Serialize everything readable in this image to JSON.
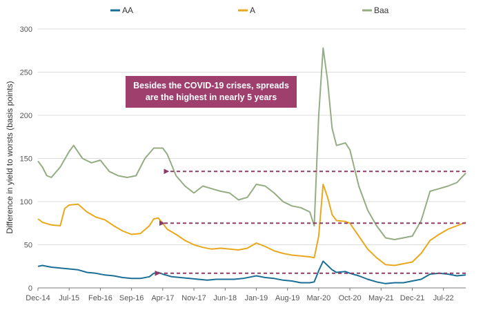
{
  "chart_data": {
    "type": "line",
    "title": "",
    "xlabel": "",
    "ylabel": "Difference in yield to worsts (basis points)",
    "ylim": [
      0,
      300
    ],
    "yticks": [
      0,
      50,
      100,
      150,
      200,
      250,
      300
    ],
    "xlim": [
      "2014-12",
      "2022-12"
    ],
    "xticks": [
      {
        "date": "2014-12",
        "label": "Dec-14"
      },
      {
        "date": "2015-07",
        "label": "Jul-15"
      },
      {
        "date": "2016-02",
        "label": "Feb-16"
      },
      {
        "date": "2016-09",
        "label": "Sep-16"
      },
      {
        "date": "2017-04",
        "label": "Apr-17"
      },
      {
        "date": "2017-11",
        "label": "Nov-17"
      },
      {
        "date": "2018-06",
        "label": "Jun-18"
      },
      {
        "date": "2019-01",
        "label": "Jan-19"
      },
      {
        "date": "2019-08",
        "label": "Aug-19"
      },
      {
        "date": "2020-03",
        "label": "Mar-20"
      },
      {
        "date": "2020-10",
        "label": "Oct-20"
      },
      {
        "date": "2021-05",
        "label": "May-21"
      },
      {
        "date": "2021-12",
        "label": "Dec-21"
      },
      {
        "date": "2022-07",
        "label": "Jul-22"
      }
    ],
    "grid": true,
    "legend_position": "top",
    "series": [
      {
        "name": "AA",
        "color": "#1a6e96",
        "points": [
          [
            "2014-12",
            25
          ],
          [
            "2015-01",
            26
          ],
          [
            "2015-03",
            24
          ],
          [
            "2015-05",
            23
          ],
          [
            "2015-07",
            22
          ],
          [
            "2015-09",
            21
          ],
          [
            "2015-11",
            18
          ],
          [
            "2016-01",
            17
          ],
          [
            "2016-03",
            15
          ],
          [
            "2016-05",
            14
          ],
          [
            "2016-07",
            12
          ],
          [
            "2016-09",
            11
          ],
          [
            "2016-11",
            11
          ],
          [
            "2017-01",
            13
          ],
          [
            "2017-02",
            17
          ],
          [
            "2017-03",
            18
          ],
          [
            "2017-04",
            16
          ],
          [
            "2017-06",
            13
          ],
          [
            "2017-08",
            12
          ],
          [
            "2017-10",
            11
          ],
          [
            "2017-12",
            10
          ],
          [
            "2018-02",
            9
          ],
          [
            "2018-04",
            10
          ],
          [
            "2018-06",
            10
          ],
          [
            "2018-08",
            10
          ],
          [
            "2018-10",
            11
          ],
          [
            "2018-12",
            13
          ],
          [
            "2019-01",
            14
          ],
          [
            "2019-03",
            12
          ],
          [
            "2019-05",
            11
          ],
          [
            "2019-07",
            9
          ],
          [
            "2019-09",
            8
          ],
          [
            "2019-11",
            6
          ],
          [
            "2020-01",
            6
          ],
          [
            "2020-02",
            7
          ],
          [
            "2020-03",
            20
          ],
          [
            "2020-04",
            31
          ],
          [
            "2020-05",
            26
          ],
          [
            "2020-06",
            21
          ],
          [
            "2020-07",
            18
          ],
          [
            "2020-09",
            19
          ],
          [
            "2020-10",
            17
          ],
          [
            "2020-12",
            14
          ],
          [
            "2021-02",
            10
          ],
          [
            "2021-04",
            7
          ],
          [
            "2021-06",
            5
          ],
          [
            "2021-08",
            6
          ],
          [
            "2021-10",
            6
          ],
          [
            "2021-12",
            8
          ],
          [
            "2022-02",
            10
          ],
          [
            "2022-04",
            16
          ],
          [
            "2022-06",
            17
          ],
          [
            "2022-08",
            16
          ],
          [
            "2022-10",
            14
          ],
          [
            "2022-12",
            15
          ]
        ]
      },
      {
        "name": "A",
        "color": "#e9a81c",
        "points": [
          [
            "2014-12",
            80
          ],
          [
            "2015-01",
            76
          ],
          [
            "2015-03",
            73
          ],
          [
            "2015-05",
            72
          ],
          [
            "2015-06",
            92
          ],
          [
            "2015-07",
            96
          ],
          [
            "2015-09",
            97
          ],
          [
            "2015-11",
            88
          ],
          [
            "2016-01",
            82
          ],
          [
            "2016-03",
            79
          ],
          [
            "2016-05",
            72
          ],
          [
            "2016-07",
            66
          ],
          [
            "2016-09",
            62
          ],
          [
            "2016-11",
            63
          ],
          [
            "2017-01",
            72
          ],
          [
            "2017-02",
            80
          ],
          [
            "2017-03",
            81
          ],
          [
            "2017-04",
            75
          ],
          [
            "2017-05",
            68
          ],
          [
            "2017-07",
            62
          ],
          [
            "2017-09",
            55
          ],
          [
            "2017-11",
            50
          ],
          [
            "2018-01",
            47
          ],
          [
            "2018-03",
            45
          ],
          [
            "2018-05",
            46
          ],
          [
            "2018-07",
            45
          ],
          [
            "2018-09",
            44
          ],
          [
            "2018-11",
            46
          ],
          [
            "2019-01",
            52
          ],
          [
            "2019-03",
            48
          ],
          [
            "2019-05",
            43
          ],
          [
            "2019-07",
            40
          ],
          [
            "2019-09",
            38
          ],
          [
            "2019-11",
            37
          ],
          [
            "2020-01",
            36
          ],
          [
            "2020-02",
            35
          ],
          [
            "2020-03",
            60
          ],
          [
            "2020-04",
            120
          ],
          [
            "2020-05",
            105
          ],
          [
            "2020-06",
            85
          ],
          [
            "2020-07",
            78
          ],
          [
            "2020-09",
            77
          ],
          [
            "2020-10",
            75
          ],
          [
            "2020-12",
            60
          ],
          [
            "2021-02",
            45
          ],
          [
            "2021-04",
            35
          ],
          [
            "2021-06",
            27
          ],
          [
            "2021-08",
            26
          ],
          [
            "2021-10",
            28
          ],
          [
            "2021-12",
            30
          ],
          [
            "2022-02",
            40
          ],
          [
            "2022-04",
            55
          ],
          [
            "2022-06",
            62
          ],
          [
            "2022-08",
            68
          ],
          [
            "2022-10",
            72
          ],
          [
            "2022-12",
            76
          ]
        ]
      },
      {
        "name": "Baa",
        "color": "#94ac82",
        "points": [
          [
            "2014-12",
            147
          ],
          [
            "2015-01",
            140
          ],
          [
            "2015-02",
            130
          ],
          [
            "2015-03",
            128
          ],
          [
            "2015-05",
            140
          ],
          [
            "2015-07",
            158
          ],
          [
            "2015-08",
            165
          ],
          [
            "2015-10",
            150
          ],
          [
            "2015-12",
            145
          ],
          [
            "2016-02",
            148
          ],
          [
            "2016-04",
            135
          ],
          [
            "2016-06",
            130
          ],
          [
            "2016-08",
            128
          ],
          [
            "2016-10",
            130
          ],
          [
            "2016-12",
            150
          ],
          [
            "2017-02",
            162
          ],
          [
            "2017-04",
            162
          ],
          [
            "2017-05",
            155
          ],
          [
            "2017-07",
            130
          ],
          [
            "2017-09",
            118
          ],
          [
            "2017-11",
            110
          ],
          [
            "2018-01",
            118
          ],
          [
            "2018-03",
            115
          ],
          [
            "2018-05",
            112
          ],
          [
            "2018-07",
            110
          ],
          [
            "2018-09",
            102
          ],
          [
            "2018-11",
            105
          ],
          [
            "2019-01",
            120
          ],
          [
            "2019-03",
            118
          ],
          [
            "2019-05",
            110
          ],
          [
            "2019-07",
            100
          ],
          [
            "2019-09",
            95
          ],
          [
            "2019-11",
            93
          ],
          [
            "2020-01",
            88
          ],
          [
            "2020-02",
            72
          ],
          [
            "2020-03",
            200
          ],
          [
            "2020-04",
            278
          ],
          [
            "2020-05",
            240
          ],
          [
            "2020-06",
            185
          ],
          [
            "2020-07",
            165
          ],
          [
            "2020-09",
            168
          ],
          [
            "2020-10",
            160
          ],
          [
            "2020-12",
            118
          ],
          [
            "2021-02",
            90
          ],
          [
            "2021-04",
            72
          ],
          [
            "2021-06",
            58
          ],
          [
            "2021-08",
            56
          ],
          [
            "2021-10",
            58
          ],
          [
            "2021-12",
            60
          ],
          [
            "2022-02",
            78
          ],
          [
            "2022-04",
            112
          ],
          [
            "2022-06",
            115
          ],
          [
            "2022-08",
            118
          ],
          [
            "2022-10",
            122
          ],
          [
            "2022-12",
            133
          ]
        ]
      }
    ],
    "annotation": {
      "lines": [
        "Besides the COVID-19 crises, spreads",
        "are the highest in nearly 5 years"
      ],
      "color": "#9e3f6e"
    },
    "reference_arrows": [
      {
        "series": "Baa",
        "value": 135,
        "from": "2022-12",
        "to": "2017-05"
      },
      {
        "series": "A",
        "value": 75,
        "from": "2022-12",
        "to": "2017-04"
      },
      {
        "series": "AA",
        "value": 17,
        "from": "2022-12",
        "to": "2017-03"
      }
    ],
    "arrow_color": "#8e3a66"
  }
}
